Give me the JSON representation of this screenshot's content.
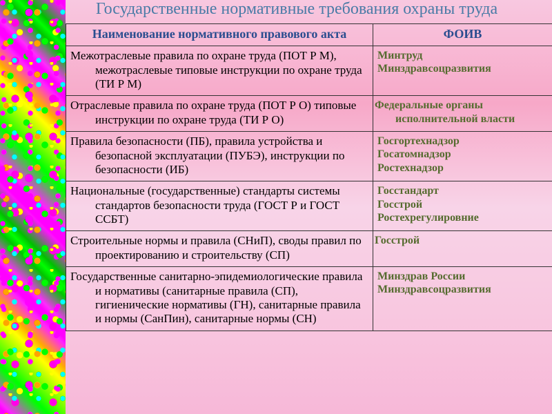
{
  "title_color": "#4a7ba6",
  "title": "Государственные нормативные требования охраны труда",
  "header_color": "#2a4d8f",
  "auth_color": "#556b2f",
  "table": {
    "columns": [
      "Наименование нормативного правового акта",
      "ФОИВ"
    ],
    "rows": [
      {
        "desc": "Межотраслевые правила по охране труда (ПОТ Р М), межотраслевые типовые инструкции по охране труда (ТИ Р М)",
        "auth_lines": [
          "Минтруд",
          "Минздравсоцразвития"
        ],
        "tight": false
      },
      {
        "desc": "Отраслевые правила по охране труда (ПОТ Р О) типовые инструкции по охране труда (ТИ Р О)",
        "auth_lines": [
          "Федеральные органы исполнительной власти"
        ],
        "tight": true
      },
      {
        "desc": "Правила безопасности (ПБ), правила устройства и безопасной эксплуатации (ПУБЭ), инструкции по безопасности (ИБ)",
        "auth_lines": [
          "Госгортехнадзор",
          "Госатомнадзор",
          "Ростехнадзор"
        ],
        "tight": false
      },
      {
        "desc": "Национальные (государственные) стандарты системы стандартов безопасности труда (ГОСТ Р и ГОСТ ССБТ)",
        "auth_lines": [
          "Госстандарт",
          "Госстрой",
          "Ростехрегулировние"
        ],
        "tight": false
      },
      {
        "desc": "Строительные нормы и правила (СНиП), своды правил по проектированию и строительству (СП)",
        "auth_lines": [
          "Госстрой"
        ],
        "tight": true
      },
      {
        "desc": "Государственные санитарно-эпидемиологические правила и нормативы (санитарные правила (СП), гигиенические нормативы (ГН), санитарные правила и нормы (СанПин), санитарные нормы (СН)",
        "auth_lines": [
          "Минздрав России",
          "Минздравсоцразвития"
        ],
        "tight": false
      }
    ]
  }
}
